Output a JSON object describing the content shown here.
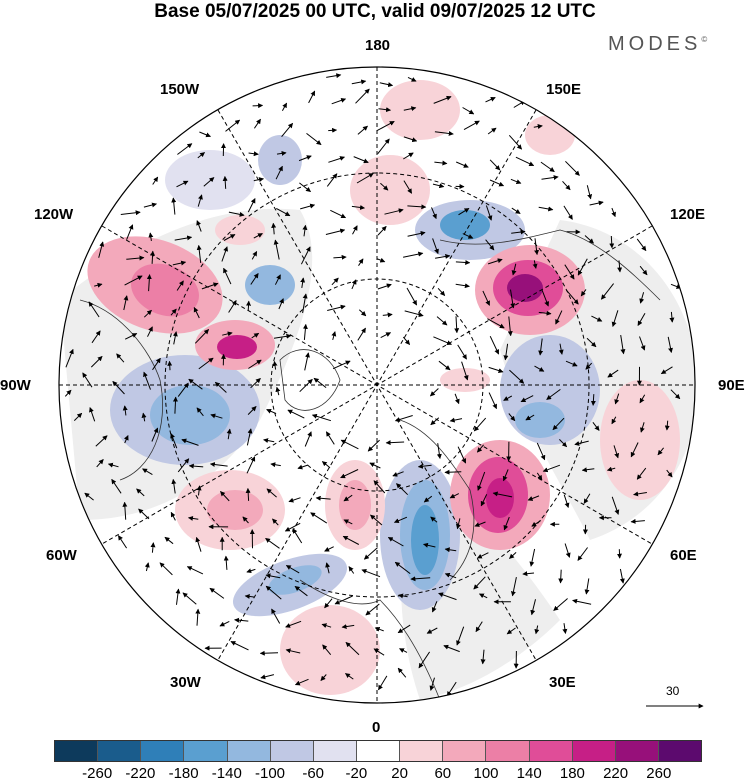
{
  "title": "Base 05/07/2025 00 UTC, valid 09/07/2025 12 UTC",
  "brand": {
    "name": "MODES",
    "mark": "©"
  },
  "longitude_labels": [
    "180",
    "150E",
    "120E",
    "90E",
    "60E",
    "30E",
    "0",
    "30W",
    "60W",
    "90W",
    "120W",
    "150W"
  ],
  "vector_scale": {
    "value": "30"
  },
  "colorbar": {
    "ticks": [
      "-260",
      "-220",
      "-180",
      "-140",
      "-100",
      "-60",
      "-20",
      "20",
      "60",
      "100",
      "140",
      "180",
      "220",
      "260"
    ],
    "colors": [
      "#0d3a5c",
      "#1a5c8c",
      "#2f7fb8",
      "#5a9fd0",
      "#93b8df",
      "#c0c8e4",
      "#e1e1f0",
      "#ffffff",
      "#f8d3d8",
      "#f3a9bb",
      "#ec7fa6",
      "#e04d98",
      "#c61f86",
      "#97107a",
      "#5c0a6e"
    ]
  }
}
